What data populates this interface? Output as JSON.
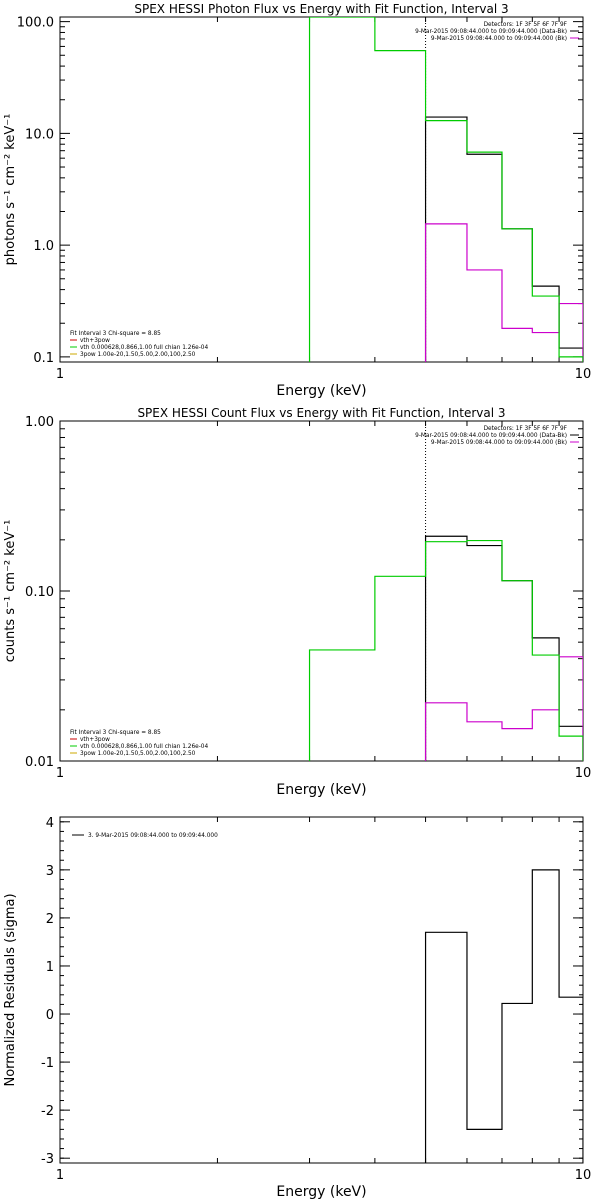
{
  "chart_data": [
    {
      "type": "line",
      "title": "SPEX HESSI Photon Flux vs Energy with Fit Function, Interval 3",
      "xlabel": "Energy (keV)",
      "ylabel": "photons s⁻¹ cm⁻² keV⁻¹",
      "xscale": "log",
      "yscale": "log",
      "xlim": [
        1,
        10
      ],
      "ylim": [
        0.09,
        110
      ],
      "x_ticks": [
        {
          "v": 1,
          "label": "1"
        },
        {
          "v": 10,
          "label": "10"
        }
      ],
      "y_ticks": [
        {
          "v": 0.1,
          "label": "0.1"
        },
        {
          "v": 1,
          "label": "1.0"
        },
        {
          "v": 10,
          "label": "10.0"
        },
        {
          "v": 100,
          "label": "100.0"
        }
      ],
      "vline": 5,
      "legend_right": [
        {
          "text": "Detectors: 1F 3F 5F 6F 7F 9F",
          "color": ""
        },
        {
          "text": "9-Mar-2015 09:08:44.000 to 09:09:44.000 (Data-Bk)",
          "color": "#000000"
        },
        {
          "text": "9-Mar-2015 09:08:44.000 to 09:09:44.000 (Bk)",
          "color": "#cc00cc"
        }
      ],
      "legend_left": [
        {
          "text": "Fit Interval 3   Chi-square = 8.85",
          "color": ""
        },
        {
          "text": "vth+3pow",
          "color": "#cc0000"
        },
        {
          "text": "vth 0.000628,0.866,1.00  full chian 1.26e-04",
          "color": "#00cc00"
        },
        {
          "text": "3pow 1.00e-20,1.50,5.00,2.00,100,2.50",
          "color": "#ccaa00"
        }
      ],
      "series": [
        {
          "color": "#000000",
          "edges": [
            5,
            6,
            7,
            8,
            9,
            10
          ],
          "values": [
            14,
            6.5,
            1.4,
            0.43,
            0.12
          ]
        },
        {
          "color": "#cc00cc",
          "edges": [
            5,
            6,
            7,
            8,
            9,
            10
          ],
          "values": [
            1.55,
            0.6,
            0.18,
            0.165,
            0.3
          ]
        },
        {
          "color": "#00cc00",
          "edges": [
            3,
            4,
            5,
            6,
            7,
            8,
            9,
            10
          ],
          "values": [
            110,
            55,
            13,
            6.8,
            1.4,
            0.35,
            0.1
          ]
        }
      ]
    },
    {
      "type": "line",
      "title": "SPEX HESSI Count Flux vs Energy with Fit Function, Interval 3",
      "xlabel": "Energy (keV)",
      "ylabel": "counts s⁻¹ cm⁻² keV⁻¹",
      "xscale": "log",
      "yscale": "log",
      "xlim": [
        1,
        10
      ],
      "ylim": [
        0.01,
        1.0
      ],
      "x_ticks": [
        {
          "v": 1,
          "label": "1"
        },
        {
          "v": 10,
          "label": "10"
        }
      ],
      "y_ticks": [
        {
          "v": 0.01,
          "label": "0.01"
        },
        {
          "v": 0.1,
          "label": "0.10"
        },
        {
          "v": 1,
          "label": "1.00"
        }
      ],
      "vline": 5,
      "legend_right": [
        {
          "text": "Detectors: 1F 3F 5F 6F 7F 9F",
          "color": ""
        },
        {
          "text": "9-Mar-2015 09:08:44.000 to 09:09:44.000 (Data-Bk)",
          "color": "#000000"
        },
        {
          "text": "9-Mar-2015 09:08:44.000 to 09:09:44.000 (Bk)",
          "color": "#cc00cc"
        }
      ],
      "legend_left": [
        {
          "text": "Fit Interval 3   Chi-square = 8.85",
          "color": ""
        },
        {
          "text": "vth+3pow",
          "color": "#cc0000"
        },
        {
          "text": "vth 0.000628,0.866,1.00  full chian 1.26e-04",
          "color": "#00cc00"
        },
        {
          "text": "3pow 1.00e-20,1.50,5.00,2.00,100,2.50",
          "color": "#ccaa00"
        }
      ],
      "series": [
        {
          "color": "#000000",
          "edges": [
            5,
            6,
            7,
            8,
            9,
            10
          ],
          "values": [
            0.21,
            0.185,
            0.115,
            0.053,
            0.016
          ]
        },
        {
          "color": "#cc00cc",
          "edges": [
            5,
            6,
            7,
            8,
            9,
            10
          ],
          "values": [
            0.022,
            0.017,
            0.0155,
            0.02,
            0.041
          ]
        },
        {
          "color": "#00cc00",
          "edges": [
            3,
            4,
            5,
            6,
            7,
            8,
            9,
            10
          ],
          "values": [
            0.045,
            0.122,
            0.195,
            0.198,
            0.115,
            0.042,
            0.014
          ]
        }
      ]
    },
    {
      "type": "line",
      "title": "",
      "xlabel": "Energy (keV)",
      "ylabel": "Normalized Residuals (sigma)",
      "xscale": "log",
      "yscale": "linear",
      "xlim": [
        1,
        10
      ],
      "ylim": [
        -3.1,
        4.1
      ],
      "x_ticks": [
        {
          "v": 1,
          "label": "1"
        },
        {
          "v": 10,
          "label": "10"
        }
      ],
      "y_ticks": [
        {
          "v": -3,
          "label": "-3"
        },
        {
          "v": -2,
          "label": "-2"
        },
        {
          "v": -1,
          "label": "-1"
        },
        {
          "v": 0,
          "label": "0"
        },
        {
          "v": 1,
          "label": "1"
        },
        {
          "v": 2,
          "label": "2"
        },
        {
          "v": 3,
          "label": "3"
        },
        {
          "v": 4,
          "label": "4"
        }
      ],
      "vline": null,
      "legend_right": [],
      "legend_left": [
        {
          "text": "3.  9-Mar-2015 09:08:44.000 to 09:09:44.000",
          "color": "#000000"
        }
      ],
      "series": [
        {
          "color": "#000000",
          "edges": [
            5,
            6,
            7,
            8,
            9,
            10
          ],
          "values": [
            1.7,
            -2.4,
            0.22,
            3.0,
            0.35
          ]
        }
      ]
    }
  ]
}
